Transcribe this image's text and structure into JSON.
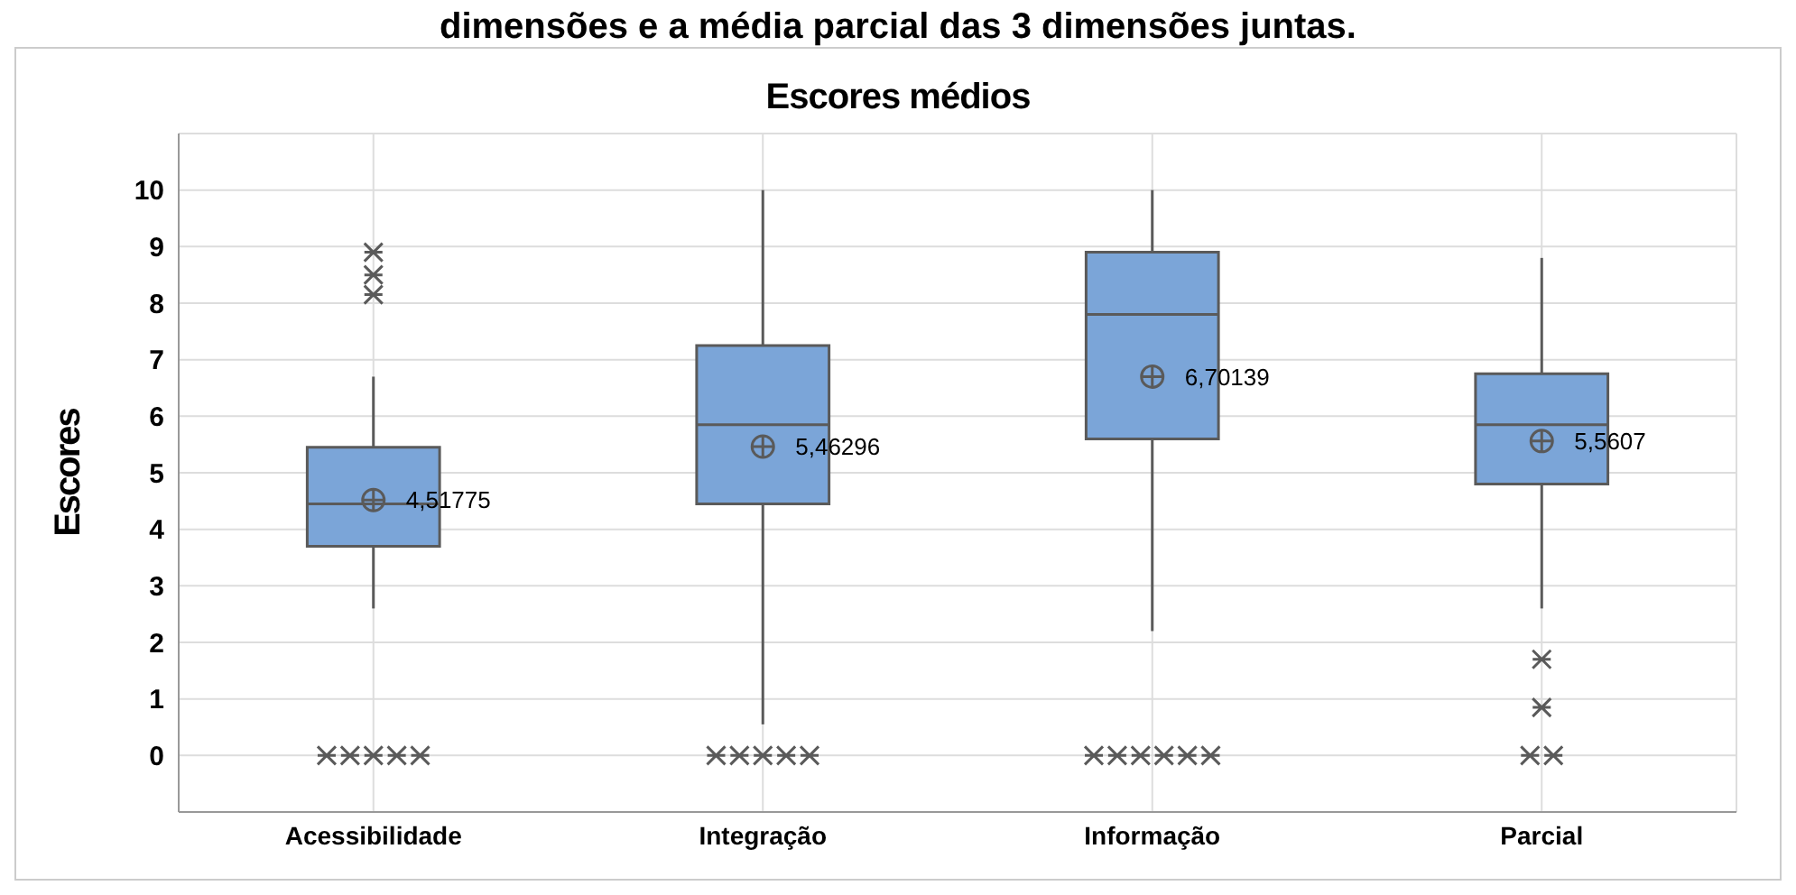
{
  "chart_data": {
    "type": "box",
    "title": "Escores médios",
    "ylabel": "Escores",
    "categories": [
      "Acessibilidade",
      "Integração",
      "Informação",
      "Parcial"
    ],
    "series": [
      {
        "color": "#7ba5d8",
        "boxes": [
          {
            "low": 2.6,
            "q1": 3.7,
            "median": 4.45,
            "q3": 5.45,
            "high": 6.7,
            "mean": 4.51775,
            "outliers": [
              8.9,
              8.5,
              8.15,
              0,
              0,
              0,
              0,
              0
            ]
          },
          {
            "low": 0.55,
            "q1": 4.45,
            "median": 5.85,
            "q3": 7.25,
            "high": 10,
            "mean": 5.46296,
            "outliers": [
              0,
              0,
              0,
              0,
              0
            ]
          },
          {
            "low": 2.2,
            "q1": 5.6,
            "median": 7.8,
            "q3": 8.9,
            "high": 10,
            "mean": 6.70139,
            "outliers": [
              0,
              0,
              0,
              0,
              0,
              0
            ]
          },
          {
            "low": 2.6,
            "q1": 4.8,
            "median": 5.85,
            "q3": 6.75,
            "high": 8.8,
            "mean": 5.5607,
            "outliers": [
              1.7,
              0.85,
              0,
              0
            ]
          }
        ]
      }
    ],
    "ylim": [
      -1,
      11
    ],
    "yticks": [
      0,
      1,
      2,
      3,
      4,
      5,
      6,
      7,
      8,
      9,
      10
    ],
    "grid": true,
    "annotations": [
      "dimensões e a média parcial das 3 dimensões juntas.",
      "4,51775",
      "5,46296",
      "6,70139",
      "5,5607"
    ]
  }
}
